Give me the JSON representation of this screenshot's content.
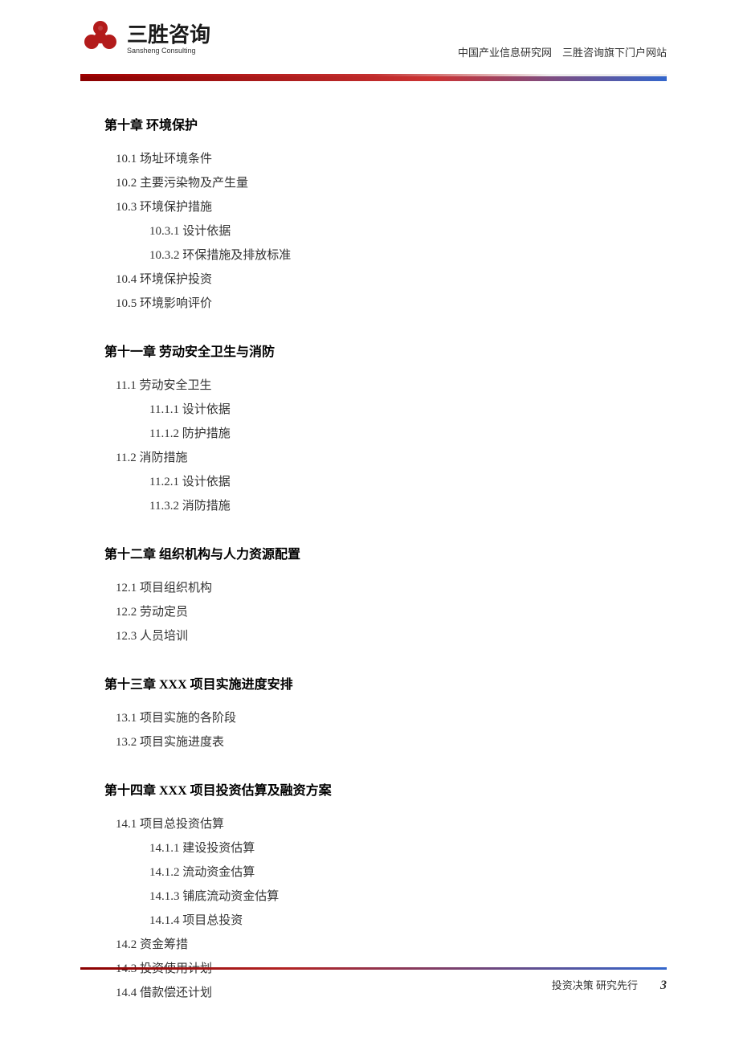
{
  "header": {
    "logo_main": "三胜咨询",
    "logo_sub": "Sansheng Consulting",
    "right_text": "中国产业信息研究网　三胜咨询旗下门户网站",
    "logo_color": "#b31b1b",
    "bar_gradient_start": "#8b0000",
    "bar_gradient_end": "#3366cc"
  },
  "chapters": [
    {
      "title": "第十章 环境保护",
      "items": [
        {
          "level": 1,
          "text": "10.1 场址环境条件"
        },
        {
          "level": 1,
          "text": "10.2 主要污染物及产生量"
        },
        {
          "level": 1,
          "text": "10.3 环境保护措施"
        },
        {
          "level": 2,
          "text": "10.3.1 设计依据"
        },
        {
          "level": 2,
          "text": "10.3.2 环保措施及排放标准"
        },
        {
          "level": 1,
          "text": "10.4 环境保护投资"
        },
        {
          "level": 1,
          "text": "10.5 环境影响评价"
        }
      ]
    },
    {
      "title": "第十一章 劳动安全卫生与消防",
      "items": [
        {
          "level": 1,
          "text": "11.1 劳动安全卫生"
        },
        {
          "level": 2,
          "text": "11.1.1 设计依据"
        },
        {
          "level": 2,
          "text": "11.1.2 防护措施"
        },
        {
          "level": 1,
          "text": "11.2 消防措施"
        },
        {
          "level": 2,
          "text": "11.2.1 设计依据"
        },
        {
          "level": 2,
          "text": "11.3.2 消防措施"
        }
      ]
    },
    {
      "title": "第十二章 组织机构与人力资源配置",
      "items": [
        {
          "level": 1,
          "text": "12.1 项目组织机构"
        },
        {
          "level": 1,
          "text": "12.2 劳动定员"
        },
        {
          "level": 1,
          "text": "12.3 人员培训"
        }
      ]
    },
    {
      "title": "第十三章 XXX 项目实施进度安排",
      "items": [
        {
          "level": 1,
          "text": "13.1 项目实施的各阶段"
        },
        {
          "level": 1,
          "text": "13.2 项目实施进度表"
        }
      ]
    },
    {
      "title": "第十四章 XXX 项目投资估算及融资方案",
      "items": [
        {
          "level": 1,
          "text": "14.1 项目总投资估算"
        },
        {
          "level": 2,
          "text": "14.1.1 建设投资估算"
        },
        {
          "level": 2,
          "text": "14.1.2 流动资金估算"
        },
        {
          "level": 2,
          "text": "14.1.3 铺底流动资金估算"
        },
        {
          "level": 2,
          "text": "14.1.4 项目总投资"
        },
        {
          "level": 1,
          "text": "14.2 资金筹措"
        },
        {
          "level": 1,
          "text": "14.3 投资使用计划"
        },
        {
          "level": 1,
          "text": "14.4 借款偿还计划"
        }
      ]
    }
  ],
  "footer": {
    "text": "投资决策 研究先行",
    "page": "3"
  }
}
